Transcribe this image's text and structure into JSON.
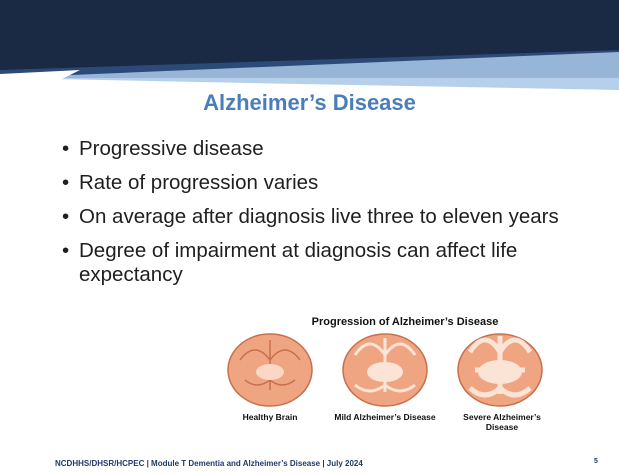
{
  "title": "Alzheimer’s Disease",
  "bullets": [
    "Progressive disease",
    "Rate of progression varies",
    "On average after diagnosis live three to eleven years",
    "Degree of impairment at diagnosis can affect life expectancy"
  ],
  "figure": {
    "title": "Progression of Alzheimer’s Disease",
    "labels": [
      "Healthy Brain",
      "Mild Alzheimer’s Disease",
      "Severe Alzheimer’s Disease"
    ]
  },
  "footer": {
    "text": "NCDHHS/DHSR/HCPEC | Module T Dementia and Alzheimer’s Disease | July 2024",
    "page_number": "5"
  }
}
